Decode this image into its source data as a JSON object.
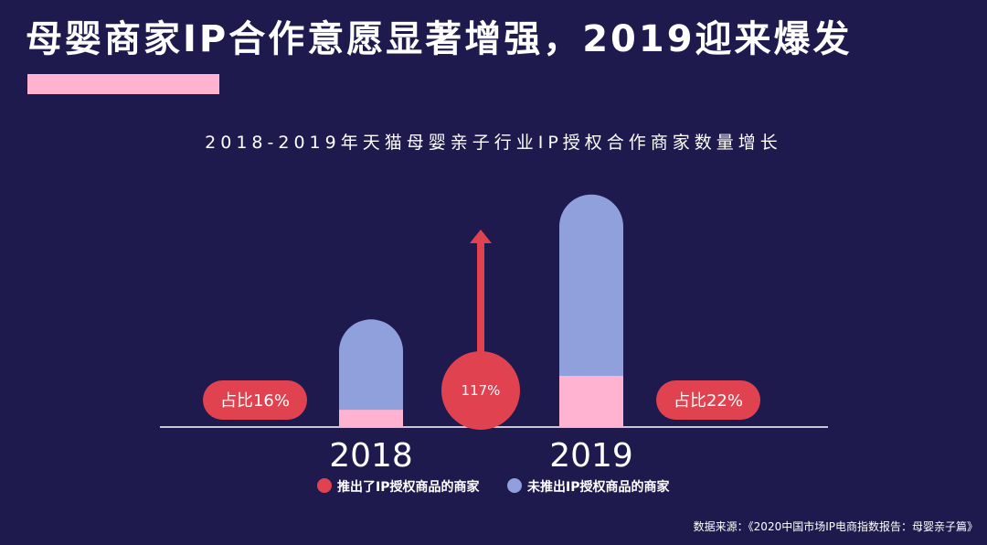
{
  "title": "母婴商家IP合作意愿显著增强，2019迎来爆发",
  "source": "数据来源：《2020中国市场IP电商指数报告：母婴亲子篇》",
  "colors": {
    "background": "#1f1a4e",
    "accent_bar": "#ffb3d1",
    "series_ip": "#ffb3d1",
    "series_non_ip": "#8fa0dc",
    "legend_ip_dot": "#e0434f",
    "badge": "#e0434f",
    "axis": "#ffffff"
  },
  "chart_data": {
    "type": "bar",
    "stacked": true,
    "title": "2018-2019年天猫母婴亲子行业IP授权合作商家数量增长",
    "categories": [
      "2018",
      "2019"
    ],
    "series": [
      {
        "name": "推出了IP授权商品的商家",
        "values": [
          16,
          47.5
        ]
      },
      {
        "name": "未推出IP授权商品的商家",
        "values": [
          84,
          168.5
        ]
      }
    ],
    "ylim": [
      0,
      220
    ],
    "grid": false,
    "legend_position": "bottom",
    "share_labels": [
      "占比16%",
      "占比22%"
    ],
    "growth_label": "117%"
  }
}
